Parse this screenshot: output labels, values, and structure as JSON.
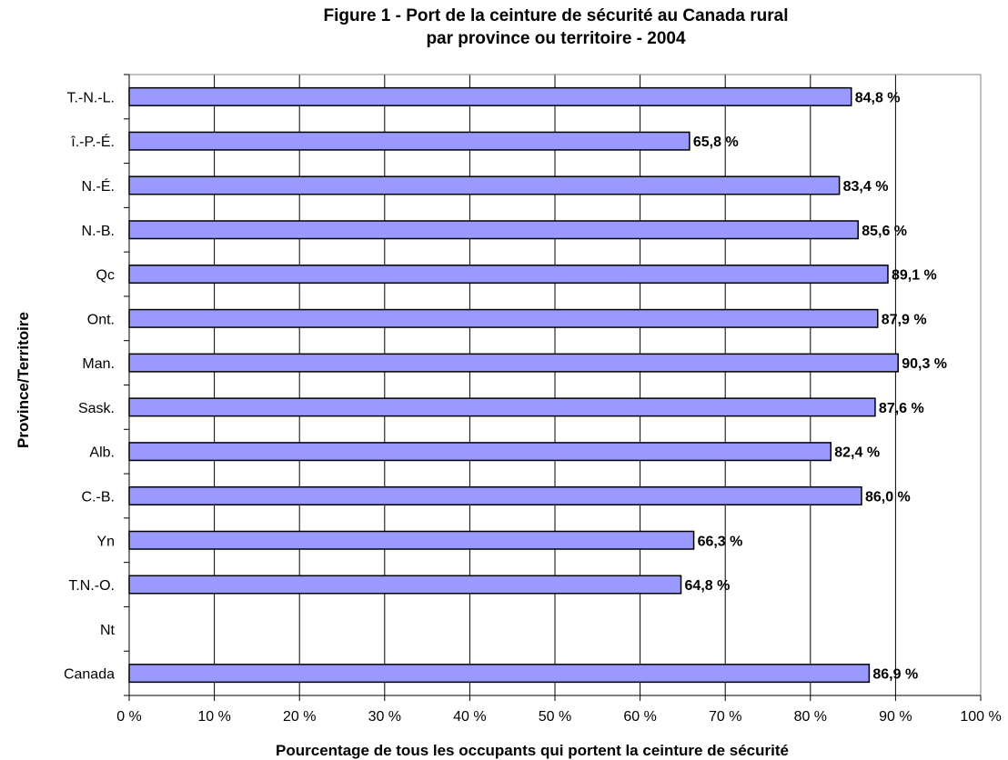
{
  "chart_data": {
    "type": "bar",
    "orientation": "horizontal",
    "title": "Figure 1 - Port de la ceinture de sécurité  au Canada rural",
    "subtitle": "par province ou territoire - 2004",
    "xlabel": "Pourcentage de tous les occupants qui portent la ceinture de sécurité",
    "ylabel": "Province/Territoire",
    "xlim": [
      0,
      100
    ],
    "xticks": [
      "0 %",
      "10 %",
      "20 %",
      "30 %",
      "40 %",
      "50 %",
      "60 %",
      "70 %",
      "80 %",
      "90 %",
      "100 %"
    ],
    "grid": "vertical",
    "bar_color": "#9999ff",
    "categories": [
      "T.-N.-L.",
      "î.-P.-É.",
      "N.-É.",
      "N.-B.",
      "Qc",
      "Ont.",
      "Man.",
      "Sask.",
      "Alb.",
      "C.-B.",
      "Yn",
      "T.N.-O.",
      "Nt",
      "Canada"
    ],
    "values": [
      84.8,
      65.8,
      83.4,
      85.6,
      89.1,
      87.9,
      90.3,
      87.6,
      82.4,
      86.0,
      66.3,
      64.8,
      null,
      86.9
    ],
    "data_labels": [
      "84,8 %",
      "65,8 %",
      "83,4 %",
      "85,6 %",
      "89,1 %",
      "87,9 %",
      "90,3 %",
      "87,6 %",
      "82,4 %",
      "86,0 %",
      "66,3 %",
      "64,8 %",
      "",
      "86,9 %"
    ]
  }
}
